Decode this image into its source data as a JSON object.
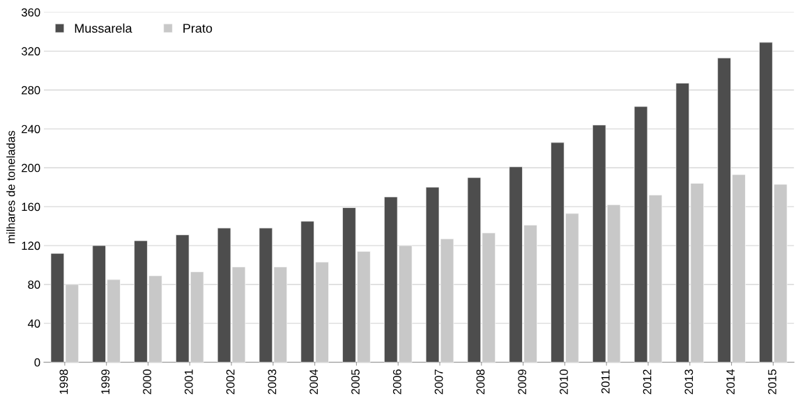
{
  "chart_data": {
    "type": "bar",
    "ylabel": "milhares de toneladas",
    "categories": [
      "1998",
      "1999",
      "2000",
      "2001",
      "2002",
      "2003",
      "2004",
      "2005",
      "2006",
      "2007",
      "2008",
      "2009",
      "2010",
      "2011",
      "2012",
      "2013",
      "2014",
      "2015"
    ],
    "series": [
      {
        "name": "Mussarela",
        "color": "#4d4d4d",
        "values": [
          112,
          120,
          125,
          131,
          138,
          138,
          145,
          159,
          170,
          180,
          190,
          201,
          226,
          244,
          263,
          287,
          313,
          329
        ]
      },
      {
        "name": "Prato",
        "color": "#c8c8c8",
        "values": [
          80,
          85,
          89,
          93,
          98,
          98,
          103,
          114,
          120,
          127,
          133,
          141,
          153,
          162,
          172,
          184,
          193,
          183
        ]
      }
    ],
    "ylim": [
      0,
      360
    ],
    "yticks": [
      0,
      40,
      80,
      120,
      160,
      200,
      240,
      280,
      320,
      360
    ],
    "grid": "y",
    "legend": "top left"
  }
}
